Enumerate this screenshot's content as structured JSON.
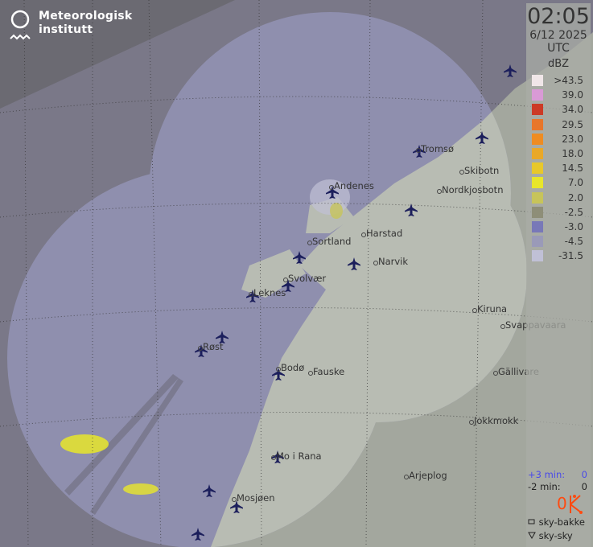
{
  "logo": {
    "line1": "Meteorologisk",
    "line2": "institutt"
  },
  "panel": {
    "time": "02:05",
    "date": "6/12 2025",
    "timezone": "UTC",
    "unit": "dBZ",
    "legend": [
      {
        "label": ">43.5",
        "color": "#f0e6e8"
      },
      {
        "label": "39.0",
        "color": "#d99ad6"
      },
      {
        "label": "34.0",
        "color": "#cc3a26"
      },
      {
        "label": "29.5",
        "color": "#e8762a"
      },
      {
        "label": "23.0",
        "color": "#ee8c22"
      },
      {
        "label": "18.0",
        "color": "#e9a828"
      },
      {
        "label": "14.5",
        "color": "#e8c82a"
      },
      {
        "label": "7.0",
        "color": "#e8e62a"
      },
      {
        "label": "2.0",
        "color": "#c7c45a"
      },
      {
        "label": "-2.5",
        "color": "#8e8e78"
      },
      {
        "label": "-3.0",
        "color": "#7878b8"
      },
      {
        "label": "-4.5",
        "color": "#9a9ab8"
      },
      {
        "label": "-31.5",
        "color": "#c0c0d6"
      }
    ],
    "lightning": {
      "plus3_label": "+3 min:",
      "plus3_value": "0",
      "minus2_label": "-2 min:",
      "minus2_value": "0",
      "total": "0",
      "ground_label": "sky-bakke",
      "cloud_label": "sky-sky"
    }
  },
  "places": [
    {
      "name": "Tromsø"
    },
    {
      "name": "Skibotn"
    },
    {
      "name": "Andenes"
    },
    {
      "name": "Nordkjosbotn"
    },
    {
      "name": "Sortland"
    },
    {
      "name": "Harstad"
    },
    {
      "name": "Narvik"
    },
    {
      "name": "Svolvær"
    },
    {
      "name": "Leknes"
    },
    {
      "name": "Kiruna"
    },
    {
      "name": "Svappavaara"
    },
    {
      "name": "Røst"
    },
    {
      "name": "Bodø"
    },
    {
      "name": "Fauske"
    },
    {
      "name": "Gällivare"
    },
    {
      "name": "Jokkmokk"
    },
    {
      "name": "Mo i Rana"
    },
    {
      "name": "Arjeplog"
    },
    {
      "name": "Mosjøen"
    }
  ],
  "icons": {
    "airport": "airplane-icon",
    "logo": "met-logo-icon",
    "lightning": "lightning-icon"
  }
}
